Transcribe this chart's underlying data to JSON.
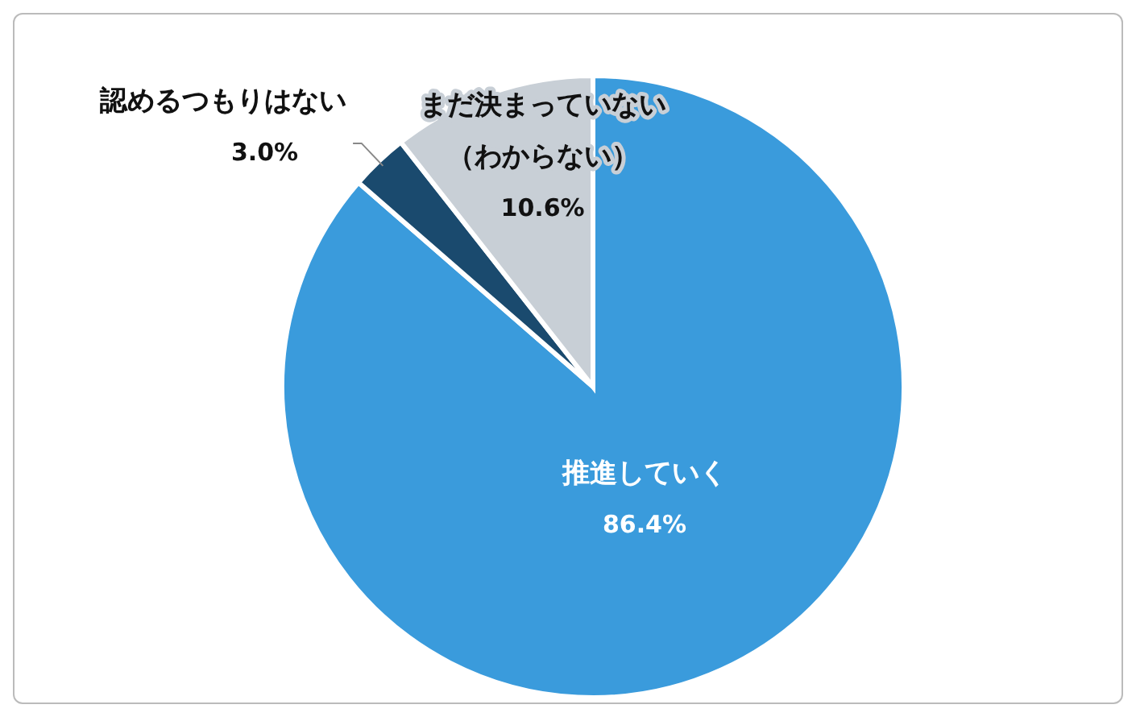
{
  "chart_data": {
    "type": "pie",
    "categories": [
      "推進していく",
      "認めるつもりはない",
      "まだ決まっていない（わからない）"
    ],
    "values": [
      86.4,
      3.0,
      10.6
    ],
    "value_labels": [
      "86.4%",
      "3.0%",
      "10.6%"
    ],
    "colors": [
      "#3a9bdc",
      "#1a4a6e",
      "#c8cfd6"
    ],
    "legend": false
  }
}
